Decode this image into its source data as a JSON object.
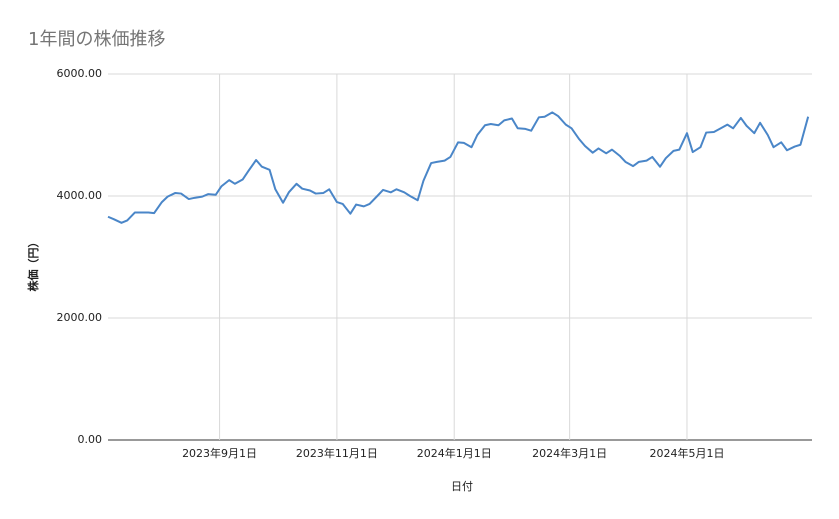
{
  "chart_data": {
    "type": "line",
    "title": "1年間の株価推移",
    "x_label": "日付",
    "y_label": "株価（円）",
    "x": [
      "2023-07-05",
      "2023-07-08",
      "2023-07-12",
      "2023-07-15",
      "2023-07-19",
      "2023-07-22",
      "2023-07-26",
      "2023-07-29",
      "2023-08-02",
      "2023-08-05",
      "2023-08-09",
      "2023-08-12",
      "2023-08-16",
      "2023-08-19",
      "2023-08-23",
      "2023-08-26",
      "2023-08-30",
      "2023-09-02",
      "2023-09-06",
      "2023-09-09",
      "2023-09-13",
      "2023-09-16",
      "2023-09-20",
      "2023-09-23",
      "2023-09-27",
      "2023-09-30",
      "2023-10-04",
      "2023-10-07",
      "2023-10-11",
      "2023-10-14",
      "2023-10-18",
      "2023-10-21",
      "2023-10-25",
      "2023-10-28",
      "2023-11-01",
      "2023-11-04",
      "2023-11-08",
      "2023-11-11",
      "2023-11-15",
      "2023-11-18",
      "2023-11-22",
      "2023-11-25",
      "2023-11-29",
      "2023-12-02",
      "2023-12-06",
      "2023-12-09",
      "2023-12-13",
      "2023-12-16",
      "2023-12-20",
      "2023-12-23",
      "2023-12-27",
      "2023-12-30",
      "2024-01-03",
      "2024-01-06",
      "2024-01-10",
      "2024-01-13",
      "2024-01-17",
      "2024-01-20",
      "2024-01-24",
      "2024-01-27",
      "2024-01-31",
      "2024-02-03",
      "2024-02-07",
      "2024-02-10",
      "2024-02-14",
      "2024-02-17",
      "2024-02-21",
      "2024-02-24",
      "2024-02-28",
      "2024-03-02",
      "2024-03-06",
      "2024-03-09",
      "2024-03-13",
      "2024-03-16",
      "2024-03-20",
      "2024-03-23",
      "2024-03-27",
      "2024-03-30",
      "2024-04-03",
      "2024-04-06",
      "2024-04-10",
      "2024-04-13",
      "2024-04-17",
      "2024-04-20",
      "2024-04-24",
      "2024-04-27",
      "2024-05-01",
      "2024-05-04",
      "2024-05-08",
      "2024-05-11",
      "2024-05-15",
      "2024-05-18",
      "2024-05-22",
      "2024-05-25",
      "2024-05-29",
      "2024-06-01",
      "2024-06-05",
      "2024-06-08",
      "2024-06-12",
      "2024-06-15",
      "2024-06-19",
      "2024-06-22",
      "2024-06-26",
      "2024-06-29",
      "2024-07-03"
    ],
    "series": [
      {
        "name": "株価",
        "color": "#4a86c8",
        "values": [
          3660,
          3620,
          3560,
          3600,
          3730,
          3730,
          3730,
          3720,
          3900,
          3990,
          4050,
          4040,
          3950,
          3970,
          3990,
          4030,
          4020,
          4160,
          4260,
          4200,
          4270,
          4410,
          4590,
          4480,
          4430,
          4110,
          3890,
          4060,
          4200,
          4120,
          4090,
          4040,
          4050,
          4110,
          3900,
          3870,
          3710,
          3860,
          3830,
          3870,
          4000,
          4100,
          4060,
          4110,
          4060,
          4000,
          3930,
          4250,
          4540,
          4560,
          4580,
          4640,
          4880,
          4870,
          4800,
          5000,
          5160,
          5180,
          5160,
          5240,
          5270,
          5110,
          5100,
          5070,
          5290,
          5300,
          5370,
          5310,
          5170,
          5110,
          4930,
          4820,
          4710,
          4780,
          4700,
          4760,
          4660,
          4560,
          4490,
          4560,
          4580,
          4640,
          4480,
          4620,
          4740,
          4760,
          5030,
          4720,
          4800,
          5040,
          5050,
          5100,
          5170,
          5110,
          5280,
          5150,
          5030,
          5200,
          5000,
          4800,
          4880,
          4750,
          4810,
          4840,
          5300
        ]
      }
    ],
    "xlim": [
      "2023-07-05",
      "2024-07-05"
    ],
    "xticks": [
      {
        "value": "2023-09-01",
        "label": "2023年9月1日"
      },
      {
        "value": "2023-11-01",
        "label": "2023年11月1日"
      },
      {
        "value": "2024-01-01",
        "label": "2024年1月1日"
      },
      {
        "value": "2024-03-01",
        "label": "2024年3月1日"
      },
      {
        "value": "2024-05-01",
        "label": "2024年5月1日"
      }
    ],
    "ylim": [
      0,
      6000
    ],
    "yticks": [
      {
        "value": 0,
        "label": "0.00"
      },
      {
        "value": 2000,
        "label": "2000.00"
      },
      {
        "value": 4000,
        "label": "4000.00"
      },
      {
        "value": 6000,
        "label": "6000.00"
      }
    ],
    "grid": true
  }
}
